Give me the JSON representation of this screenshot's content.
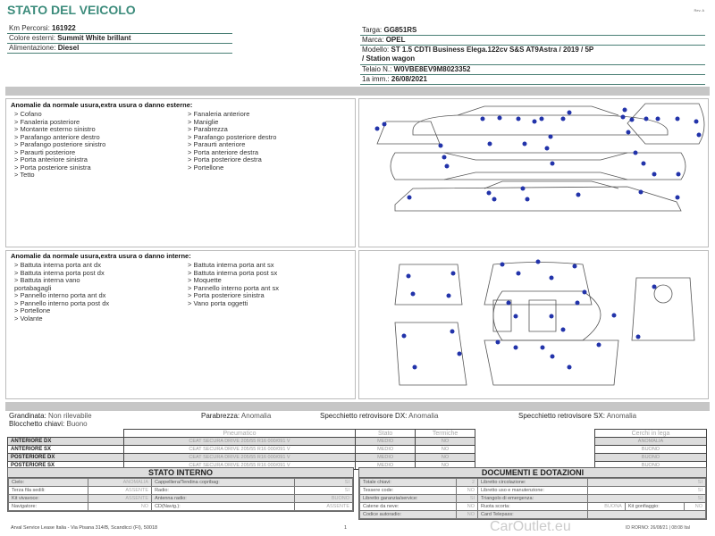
{
  "header": {
    "title": "STATO DEL VEICOLO",
    "rev": "Rev. A"
  },
  "vehicle_left": [
    {
      "label": "Km Percorsi:",
      "value": "161922"
    },
    {
      "label": "Colore esterni:",
      "value": "Summit White brillant"
    },
    {
      "label": "Alimentazione:",
      "value": "Diesel"
    }
  ],
  "vehicle_right": {
    "targa": {
      "label": "Targa:",
      "value": "GG851RS"
    },
    "marca": {
      "label": "Marca:",
      "value": "OPEL"
    },
    "modello": {
      "label": "Modello:",
      "value": "ST 1.5 CDTI Business Elega.122cv S&S AT9Astra / 2019 / 5P",
      "value2": "/ Station wagon"
    },
    "telaio": {
      "label": "Telaio N.:",
      "value": "W0VBE8EV9M8023352"
    },
    "imm": {
      "label": "1a imm.:",
      "value": "26/08/2021"
    }
  },
  "exterior": {
    "title": "Anomalie da normale usura,extra usura o danno esterne:",
    "col1": [
      "> Cofano",
      "> Fanaleria posteriore",
      "> Montante esterno sinistro",
      "> Parafango anteriore destro",
      "> Parafango posteriore sinistro",
      "> Paraurti posteriore",
      "> Porta anteriore sinistra",
      "> Porta posteriore sinistra",
      "> Tetto"
    ],
    "col2": [
      "> Fanaleria anteriore",
      "> Maniglie",
      "> Parabrezza",
      "> Parafango posteriore destro",
      "> Paraurti anteriore",
      "> Porta anteriore destra",
      "> Porta posteriore destra",
      "> Portellone"
    ]
  },
  "interior": {
    "title": "Anomalie da normale usura,extra usura o danno interne:",
    "col1": [
      "> Battuta interna porta ant dx",
      "> Battuta interna porta post dx",
      "> Battuta interna vano",
      "portabagagli",
      "> Pannello interno porta ant dx",
      "> Pannello interno porta post dx",
      "> Portellone",
      "> Volante"
    ],
    "col2": [
      "> Battuta interna porta ant sx",
      "> Battuta interna porta post sx",
      "> Moquette",
      "> Pannello interno porta ant sx",
      "> Porta posteriore sinistra",
      "> Vano porta oggetti"
    ]
  },
  "checks": {
    "grandinata": {
      "label": "Grandinata:",
      "value": "Non rilevabile"
    },
    "blocchetto": {
      "label": "Blocchetto chiavi:",
      "value": "Buono"
    },
    "parabrezza": {
      "label": "Parabrezza:",
      "value": "Anomalia"
    },
    "spec_dx": {
      "label": "Specchietto retrovisore DX:",
      "value": "Anomalia"
    },
    "spec_sx": {
      "label": "Specchietto retrovisore SX:",
      "value": "Anomalia"
    }
  },
  "tyres": {
    "headers": [
      "Pneumatico",
      "Stato",
      "Termiche",
      "Cerchi in lega"
    ],
    "rows": [
      {
        "pos": "ANTERIORE DX",
        "tyre": "CEAT SECURA DRIVE 205/55 R16 000/091 V",
        "stato": "MEDIO",
        "termiche": "NO",
        "cerchi": "ANOMALIA"
      },
      {
        "pos": "ANTERIORE SX",
        "tyre": "CEAT SECURA DRIVE 205/55 R16 000/091 V",
        "stato": "MEDIO",
        "termiche": "NO",
        "cerchi": "BUONO"
      },
      {
        "pos": "POSTERIORE DX",
        "tyre": "CEAT SECURA DRIVE 205/55 R16 000/091 V",
        "stato": "MEDIO",
        "termiche": "NO",
        "cerchi": "BUONO"
      },
      {
        "pos": "POSTERIORE SX",
        "tyre": "CEAT SECURA DRIVE 205/55 R16 000/091 V",
        "stato": "MEDIO",
        "termiche": "NO",
        "cerchi": "BUONO"
      }
    ]
  },
  "stato_interno": {
    "title": "STATO INTERNO",
    "rows": [
      [
        "Cielo:",
        "ANOMALIA",
        "Cappelliera/Tendina copribag:",
        "SI"
      ],
      [
        "Terza fila sedili:",
        "ASSENTE",
        "Radio:",
        "SI"
      ],
      [
        "Kit vivavoce:",
        "ASSENTE",
        "Antenna radio:",
        "BUONO"
      ],
      [
        "Navigatore:",
        "NO",
        "CD(Navig.):",
        "ASSENTE"
      ]
    ]
  },
  "documenti": {
    "title": "DOCUMENTI E DOTAZIONI",
    "rows": [
      [
        "Totale chiavi:",
        "2",
        "Libretto circolazione:",
        "SI"
      ],
      [
        "Tessere code:",
        "NO",
        "Libretto uso e manutenzione:",
        "SI"
      ],
      [
        "Libretto garanzia/service:",
        "SI",
        "Triangolo di emergenza:",
        "SI"
      ],
      [
        "Catene da neve:",
        "NO",
        "Ruota scorta:",
        "BUONA",
        "Kit gonfiaggio:",
        "NO"
      ],
      [
        "Codice autoradio:",
        "NO",
        "Card Telepass:",
        ""
      ]
    ]
  },
  "footer": {
    "address": "Arval Service Lease Italia - Via Pisana 314/B, Scandicci (FI), 50018",
    "page": "1",
    "id": "ID RORNO: 26/08/21 | 08:08 Ital",
    "watermark": "CarOutlet.eu"
  },
  "colors": {
    "title": "#3d8c7c",
    "damage_dot": "#2233aa",
    "bar": "#c6c6c6"
  }
}
